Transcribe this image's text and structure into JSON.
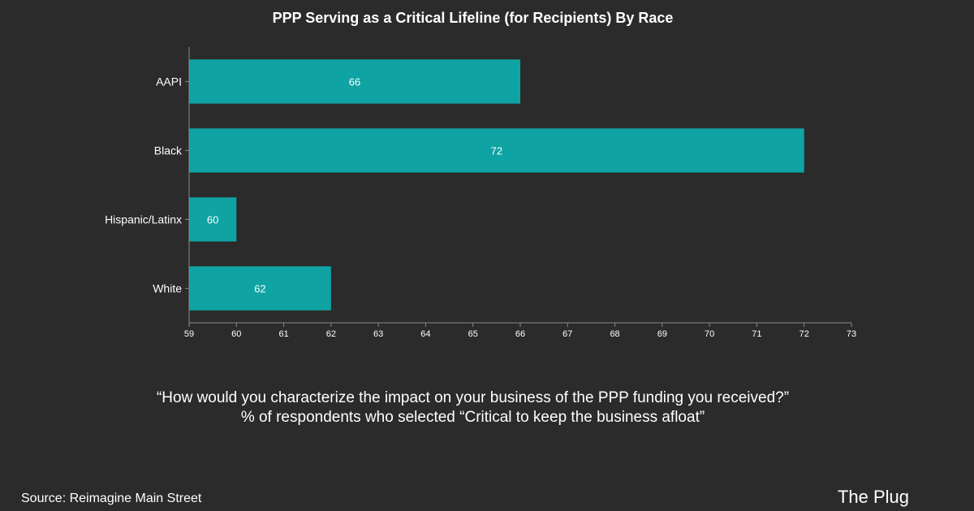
{
  "chart_data": {
    "type": "bar",
    "orientation": "horizontal",
    "title": "PPP Serving as a Critical Lifeline (for Recipients) By Race",
    "categories": [
      "AAPI",
      "Black",
      "Hispanic/Latinx",
      "White"
    ],
    "values": [
      66,
      72,
      60,
      62
    ],
    "data_labels": [
      "66",
      "72",
      "60",
      "62"
    ],
    "xlim": [
      59,
      73
    ],
    "x_ticks": [
      "59",
      "60",
      "61",
      "62",
      "63",
      "64",
      "65",
      "66",
      "67",
      "68",
      "69",
      "70",
      "71",
      "72",
      "73"
    ],
    "xlabel": "",
    "ylabel": "",
    "grid": false,
    "bar_color": "#0fa3a3"
  },
  "caption": {
    "line1": "“How would you characterize the impact on your business of the PPP funding you received?”",
    "line2": "% of respondents who selected “Critical to keep the business afloat”"
  },
  "footer": {
    "source": "Source: Reimagine Main Street",
    "brand": "The Plug"
  }
}
